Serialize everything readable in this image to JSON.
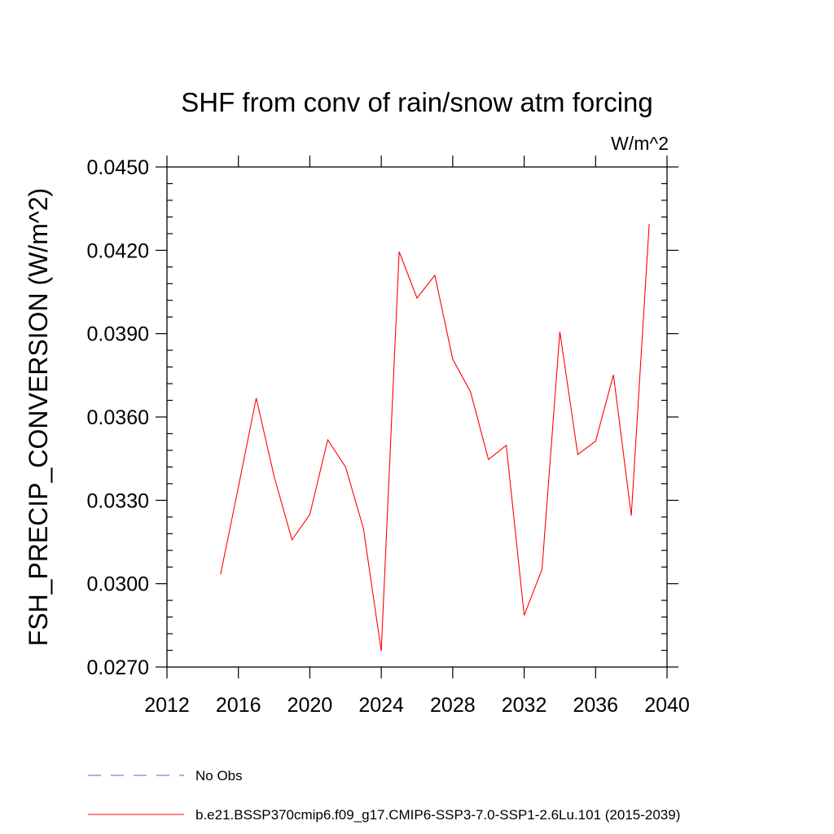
{
  "chart_data": {
    "type": "line",
    "title": "SHF from conv of rain/snow atm forcing",
    "units_label": "W/m^2",
    "ylabel": "FSH_PRECIP_CONVERSION  (W/m^2)",
    "xlabel": "",
    "xlim": [
      2012,
      2040
    ],
    "ylim": [
      0.027,
      0.045
    ],
    "x_ticks": [
      2012,
      2016,
      2020,
      2024,
      2028,
      2032,
      2036,
      2040
    ],
    "x_tick_labels": [
      "2012",
      "2016",
      "2020",
      "2024",
      "2028",
      "2032",
      "2036",
      "2040"
    ],
    "y_ticks": [
      0.027,
      0.03,
      0.033,
      0.036,
      0.039,
      0.042,
      0.045
    ],
    "y_tick_labels": [
      "0.0270",
      "0.0300",
      "0.0330",
      "0.0360",
      "0.0390",
      "0.0420",
      "0.0450"
    ],
    "grid": false,
    "legend_position": "bottom",
    "series": [
      {
        "name": "No Obs",
        "color": "#6a5acd",
        "dash": true,
        "x": [],
        "values": []
      },
      {
        "name": "b.e21.BSSP370cmip6.f09_g17.CMIP6-SSP3-7.0-SSP1-2.6Lu.101 (2015-2039)",
        "color": "#ff0000",
        "dash": false,
        "x": [
          2015,
          2016,
          2017,
          2018,
          2019,
          2020,
          2021,
          2022,
          2023,
          2024,
          2025,
          2026,
          2027,
          2028,
          2029,
          2030,
          2031,
          2032,
          2033,
          2034,
          2035,
          2036,
          2037,
          2038,
          2039
        ],
        "values": [
          0.03033,
          0.03348,
          0.03668,
          0.03386,
          0.03158,
          0.03249,
          0.03518,
          0.0342,
          0.03199,
          0.02758,
          0.04195,
          0.04028,
          0.0411,
          0.03808,
          0.0369,
          0.03447,
          0.03498,
          0.02886,
          0.03052,
          0.03907,
          0.03465,
          0.03513,
          0.03752,
          0.03245,
          0.04295
        ]
      }
    ]
  }
}
